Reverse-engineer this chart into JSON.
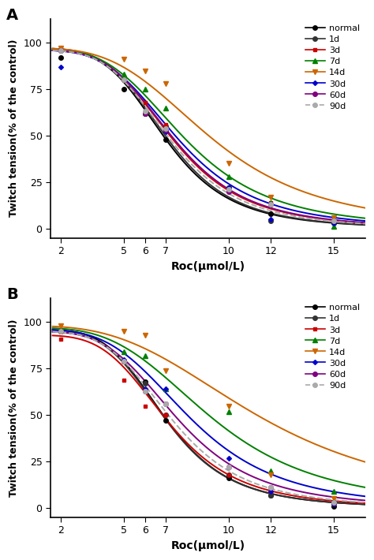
{
  "panel_A_label": "A",
  "panel_B_label": "B",
  "xlabel": "Roc(μmol/L)",
  "ylabel": "Twitch tension(% of the control)",
  "xticks": [
    2,
    5,
    6,
    7,
    10,
    12,
    15
  ],
  "yticks": [
    0,
    25,
    50,
    75,
    100
  ],
  "xlim": [
    1.5,
    16.5
  ],
  "ylim": [
    -5,
    113
  ],
  "series": [
    {
      "label": "normal",
      "color": "#000000",
      "marker": "o",
      "ec50_A": 7.0,
      "hill_A": 4.5,
      "top_A": 96,
      "ec50_B": 7.0,
      "hill_B": 4.5,
      "top_B": 96
    },
    {
      "label": "1d",
      "color": "#333333",
      "marker": "o",
      "ec50_A": 7.1,
      "hill_A": 4.5,
      "top_A": 96,
      "ec50_B": 7.0,
      "hill_B": 4.5,
      "top_B": 95
    },
    {
      "label": "3d",
      "color": "#cc0000",
      "marker": "s",
      "ec50_A": 7.3,
      "hill_A": 4.2,
      "top_A": 97,
      "ec50_B": 7.1,
      "hill_B": 4.2,
      "top_B": 93
    },
    {
      "label": "7d",
      "color": "#008000",
      "marker": "^",
      "ec50_A": 7.9,
      "hill_A": 3.8,
      "top_A": 97,
      "ec50_B": 9.2,
      "hill_B": 3.5,
      "top_B": 97
    },
    {
      "label": "14d",
      "color": "#cc6600",
      "marker": "v",
      "ec50_A": 9.2,
      "hill_A": 3.5,
      "top_A": 97,
      "ec50_B": 11.5,
      "hill_B": 3.0,
      "top_B": 98
    },
    {
      "label": "30d",
      "color": "#0000cc",
      "marker": "D",
      "ec50_A": 7.6,
      "hill_A": 4.0,
      "top_A": 96,
      "ec50_B": 8.2,
      "hill_B": 3.8,
      "top_B": 96
    },
    {
      "label": "60d",
      "color": "#800080",
      "marker": "o",
      "ec50_A": 7.4,
      "hill_A": 4.2,
      "top_A": 96,
      "ec50_B": 7.6,
      "hill_B": 4.0,
      "top_B": 95
    },
    {
      "label": "90d",
      "color": "#aaaaaa",
      "marker": "o",
      "ec50_A": 7.2,
      "hill_A": 4.3,
      "top_A": 96,
      "ec50_B": 7.3,
      "hill_B": 4.2,
      "top_B": 95
    }
  ],
  "data_points_A": {
    "normal": {
      "x": [
        2,
        5,
        6,
        7,
        10,
        12,
        15
      ],
      "y": [
        92,
        75,
        62,
        48,
        22,
        8,
        4
      ]
    },
    "1d": {
      "x": [
        2,
        5,
        6,
        7,
        10,
        12,
        15
      ],
      "y": [
        96,
        80,
        62,
        55,
        22,
        4,
        3
      ]
    },
    "3d": {
      "x": [
        2,
        5,
        6,
        7,
        10,
        12,
        15
      ],
      "y": [
        97,
        80,
        68,
        56,
        20,
        14,
        4
      ]
    },
    "7d": {
      "x": [
        2,
        5,
        6,
        7,
        10,
        12,
        15
      ],
      "y": [
        97,
        83,
        75,
        65,
        28,
        14,
        1
      ]
    },
    "14d": {
      "x": [
        2,
        5,
        6,
        7,
        10,
        12,
        15
      ],
      "y": [
        97,
        91,
        85,
        78,
        35,
        17,
        6
      ]
    },
    "30d": {
      "x": [
        2,
        5,
        6,
        7,
        10,
        12,
        15
      ],
      "y": [
        87,
        80,
        62,
        52,
        22,
        5,
        3
      ]
    },
    "60d": {
      "x": [
        2,
        5,
        6,
        7,
        10,
        12,
        15
      ],
      "y": [
        96,
        80,
        62,
        53,
        20,
        13,
        4
      ]
    },
    "90d": {
      "x": [
        2,
        5,
        6,
        7,
        10,
        12,
        15
      ],
      "y": [
        96,
        80,
        63,
        54,
        21,
        13,
        4
      ]
    }
  },
  "data_points_B": {
    "normal": {
      "x": [
        2,
        5,
        6,
        7,
        10,
        12,
        15
      ],
      "y": [
        95,
        79,
        68,
        47,
        16,
        7,
        1
      ]
    },
    "1d": {
      "x": [
        2,
        5,
        6,
        7,
        10,
        12,
        15
      ],
      "y": [
        95,
        79,
        67,
        50,
        18,
        7,
        3
      ]
    },
    "3d": {
      "x": [
        2,
        5,
        6,
        7,
        10,
        12,
        15
      ],
      "y": [
        91,
        69,
        55,
        50,
        18,
        9,
        2
      ]
    },
    "7d": {
      "x": [
        2,
        5,
        6,
        7,
        10,
        12,
        15
      ],
      "y": [
        96,
        84,
        82,
        64,
        52,
        20,
        9
      ]
    },
    "14d": {
      "x": [
        2,
        5,
        6,
        7,
        10,
        12,
        15
      ],
      "y": [
        98,
        95,
        93,
        74,
        55,
        18,
        5
      ]
    },
    "30d": {
      "x": [
        2,
        5,
        6,
        7,
        10,
        12,
        15
      ],
      "y": [
        95,
        80,
        64,
        64,
        27,
        9,
        2
      ]
    },
    "60d": {
      "x": [
        2,
        5,
        6,
        7,
        10,
        12,
        15
      ],
      "y": [
        95,
        79,
        63,
        56,
        22,
        11,
        3
      ]
    },
    "90d": {
      "x": [
        2,
        5,
        6,
        7,
        10,
        12,
        15
      ],
      "y": [
        95,
        79,
        63,
        56,
        22,
        11,
        3
      ]
    }
  }
}
